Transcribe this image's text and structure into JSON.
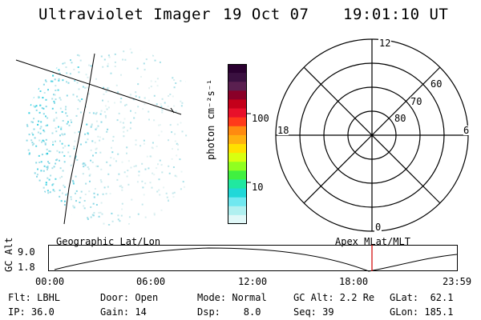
{
  "header": {
    "title": "Ultraviolet Imager",
    "date": "19 Oct 07",
    "time": "19:01:10 UT"
  },
  "colorbar": {
    "unit_label": "photon cm⁻²s⁻¹",
    "ticks": [
      "100",
      "10"
    ],
    "colors": [
      "#2a0030",
      "#3a1040",
      "#5a2050",
      "#8a0028",
      "#c4001a",
      "#e8102a",
      "#ff3a1a",
      "#ff8a10",
      "#ffb010",
      "#ffe000",
      "#d8ff10",
      "#90ff20",
      "#40f040",
      "#20e8a0",
      "#20d8d8",
      "#70e8f0",
      "#b0f0f0",
      "#e0f8f8"
    ]
  },
  "polar": {
    "hour_labels": [
      "12",
      "18",
      "6",
      "0"
    ],
    "lat_labels": [
      "60",
      "70",
      "80"
    ]
  },
  "timeline": {
    "left_label": "Geographic Lat/Lon",
    "right_label": "Apex MLat/MLT",
    "y_axis_label": "GC Alt",
    "y_ticks": [
      "9.0",
      "1.8"
    ],
    "x_ticks": [
      "00:00",
      "06:00",
      "12:00",
      "18:00",
      "23:59"
    ],
    "marker_color": "#d00000"
  },
  "footer": {
    "row1": {
      "flt": "Flt: LBHL",
      "door": "Door: Open",
      "mode": "Mode: Normal",
      "gc_alt": "GC Alt: 2.2 Re",
      "glat": "GLat:  62.1"
    },
    "row2": {
      "ip": "IP: 36.0",
      "gain": "Gain: 14",
      "dsp": "Dsp:    8.0",
      "seq": "Seq: 39",
      "glon": "GLon: 185.1"
    }
  }
}
